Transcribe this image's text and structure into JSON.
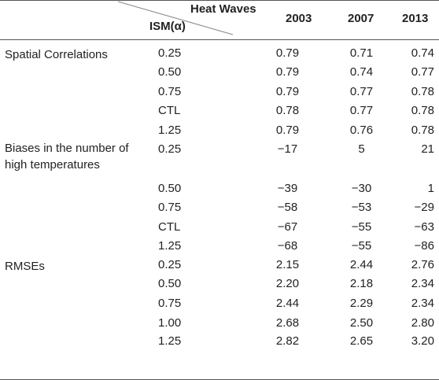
{
  "header": {
    "column_group_label": "Heat Waves",
    "row_param_label": "ISM(α)",
    "years": [
      "2003",
      "2007",
      "2013"
    ]
  },
  "groups": [
    {
      "label_lines": [
        "Spatial Correlations"
      ],
      "rows": [
        {
          "alpha": "0.25",
          "values": [
            "0.79",
            "0.71",
            "0.74"
          ]
        },
        {
          "alpha": "0.50",
          "values": [
            "0.79",
            "0.74",
            "0.77"
          ]
        },
        {
          "alpha": "0.75",
          "values": [
            "0.79",
            "0.77",
            "0.78"
          ]
        },
        {
          "alpha": "CTL",
          "values": [
            "0.78",
            "0.77",
            "0.78"
          ]
        },
        {
          "alpha": "1.25",
          "values": [
            "0.79",
            "0.76",
            "0.78"
          ]
        }
      ]
    },
    {
      "label_lines": [
        "Biases in the number of",
        "high temperatures"
      ],
      "rows": [
        {
          "alpha": "0.25",
          "values": [
            "−17",
            "5",
            "21"
          ]
        },
        {
          "alpha": "0.50",
          "values": [
            "−39",
            "−30",
            "1"
          ]
        },
        {
          "alpha": "0.75",
          "values": [
            "−58",
            "−53",
            "−29"
          ]
        },
        {
          "alpha": "CTL",
          "values": [
            "−67",
            "−55",
            "−63"
          ]
        },
        {
          "alpha": "1.25",
          "values": [
            "−68",
            "−55",
            "−86"
          ]
        }
      ]
    },
    {
      "label_lines": [
        "RMSEs"
      ],
      "rows": [
        {
          "alpha": "0.25",
          "values": [
            "2.15",
            "2.44",
            "2.76"
          ]
        },
        {
          "alpha": "0.50",
          "values": [
            "2.20",
            "2.18",
            "2.34"
          ]
        },
        {
          "alpha": "0.75",
          "values": [
            "2.44",
            "2.29",
            "2.34"
          ]
        },
        {
          "alpha": "1.00",
          "values": [
            "2.68",
            "2.50",
            "2.80"
          ]
        },
        {
          "alpha": "1.25",
          "values": [
            "2.82",
            "2.65",
            "3.20"
          ]
        }
      ]
    }
  ],
  "colors": {
    "text": "#222222",
    "rule": "#555555",
    "diagonal": "#888888"
  }
}
